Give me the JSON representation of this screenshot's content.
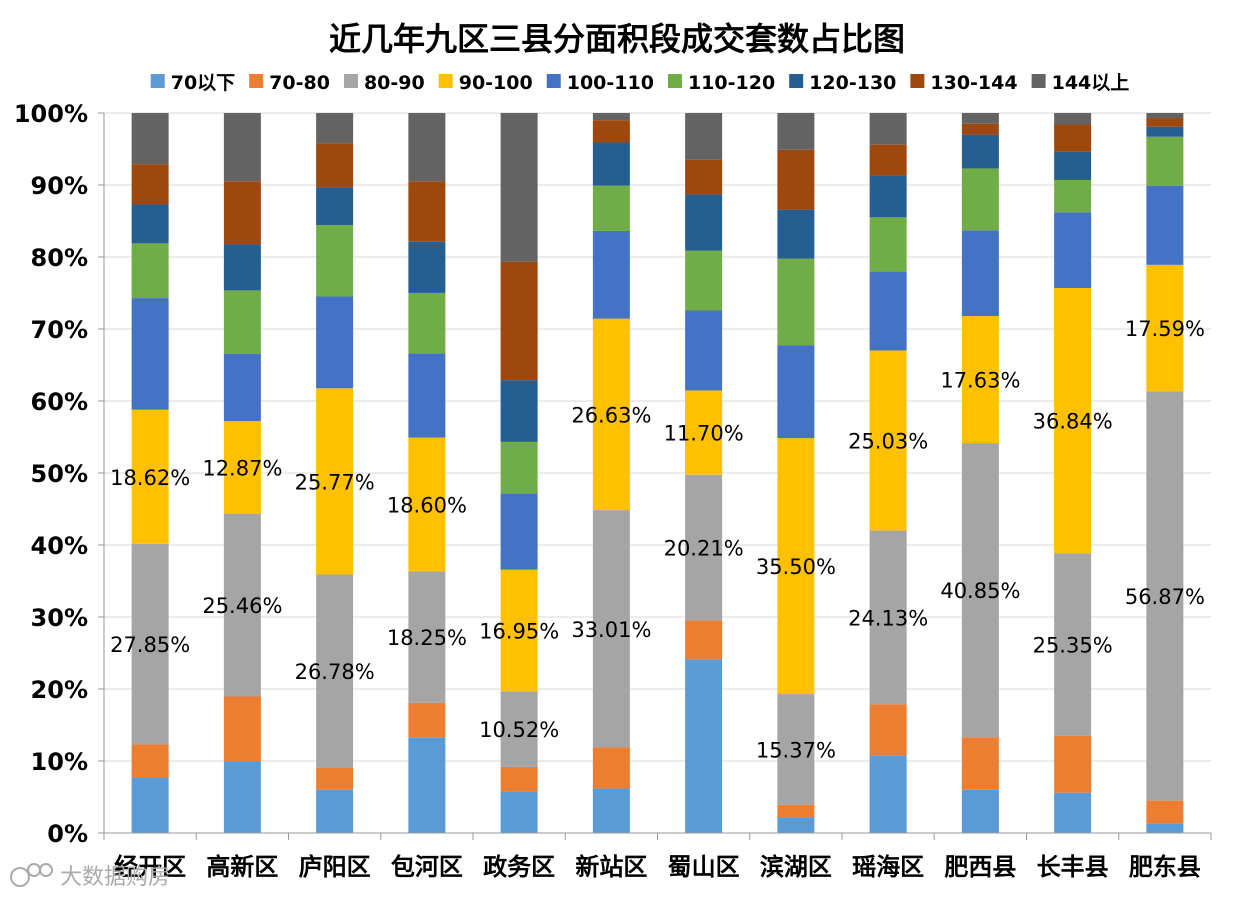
{
  "chart_data": {
    "type": "bar",
    "stacked": true,
    "percent": true,
    "title": "近几年九区三县分面积段成交套数占比图",
    "xlabel": "",
    "ylabel": "",
    "ylim": [
      0,
      100
    ],
    "ytick_labels": [
      "0%",
      "10%",
      "20%",
      "30%",
      "40%",
      "50%",
      "60%",
      "70%",
      "80%",
      "90%",
      "100%"
    ],
    "legend_position": "top",
    "categories": [
      "经开区",
      "高新区",
      "庐阳区",
      "包河区",
      "政务区",
      "新站区",
      "蜀山区",
      "滨湖区",
      "瑶海区",
      "肥西县",
      "长丰县",
      "肥东县"
    ],
    "series": [
      {
        "name": "70以下",
        "color": "#5B9BD5",
        "values": [
          7.7,
          10.0,
          6.0,
          13.3,
          5.8,
          6.2,
          24.1,
          2.2,
          10.8,
          6.0,
          5.6,
          1.3
        ]
      },
      {
        "name": "70-80",
        "color": "#ED7D31",
        "values": [
          4.6,
          9.0,
          3.0,
          4.8,
          3.4,
          5.7,
          5.4,
          1.7,
          7.1,
          7.3,
          7.9,
          3.2
        ]
      },
      {
        "name": "80-90",
        "color": "#A5A5A5",
        "values": [
          27.85,
          25.46,
          26.78,
          18.25,
          10.52,
          33.01,
          20.21,
          15.37,
          24.13,
          40.85,
          25.35,
          56.87
        ]
      },
      {
        "name": "90-100",
        "color": "#FFC000",
        "values": [
          18.62,
          12.87,
          25.77,
          18.6,
          16.95,
          26.63,
          11.7,
          35.5,
          25.03,
          17.63,
          36.84,
          17.59
        ]
      },
      {
        "name": "100-110",
        "color": "#4472C4",
        "values": [
          15.5,
          9.4,
          12.7,
          11.7,
          10.6,
          12.2,
          11.1,
          12.9,
          11.0,
          11.9,
          10.5,
          11.0
        ]
      },
      {
        "name": "110-120",
        "color": "#70AD47",
        "values": [
          7.6,
          8.8,
          9.9,
          8.4,
          7.2,
          6.3,
          8.3,
          12.0,
          7.5,
          8.6,
          4.5,
          6.8
        ]
      },
      {
        "name": "120-130",
        "color": "#255E91",
        "values": [
          5.4,
          6.4,
          5.2,
          7.1,
          8.6,
          6.0,
          7.8,
          6.8,
          5.8,
          4.7,
          3.9,
          1.4
        ]
      },
      {
        "name": "130-144",
        "color": "#9E480E",
        "values": [
          5.6,
          8.8,
          6.1,
          8.4,
          16.5,
          3.1,
          4.8,
          8.3,
          4.3,
          1.5,
          3.8,
          1.2
        ]
      },
      {
        "name": "144以上",
        "color": "#636363",
        "values": [
          7.1,
          9.5,
          4.2,
          9.5,
          20.7,
          1.0,
          6.5,
          5.1,
          4.4,
          1.5,
          1.6,
          0.7
        ]
      }
    ],
    "data_labels": {
      "80-90": [
        "27.85%",
        "25.46%",
        "26.78%",
        "18.25%",
        "10.52%",
        "33.01%",
        "20.21%",
        "15.37%",
        "24.13%",
        "40.85%",
        "25.35%",
        "56.87%"
      ],
      "90-100": [
        "18.62%",
        "12.87%",
        "25.77%",
        "18.60%",
        "16.95%",
        "26.63%",
        "11.70%",
        "35.50%",
        "25.03%",
        "17.63%",
        "36.84%",
        "17.59%"
      ]
    }
  },
  "watermark": "大数据购房"
}
